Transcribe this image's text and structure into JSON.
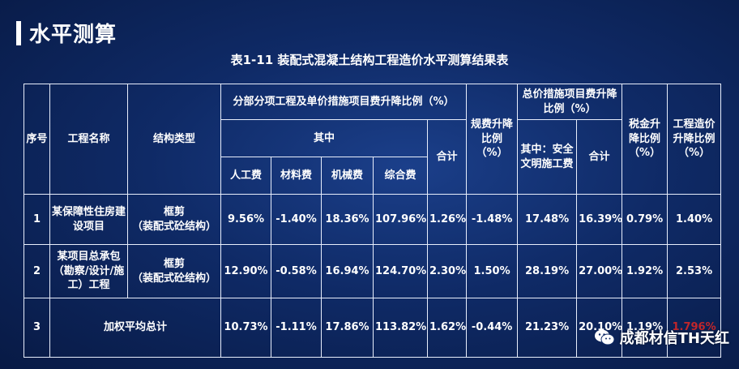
{
  "slide_title": "水平测算",
  "table_title": "表1-11 装配式混凝土结构工程造价水平测算结果表",
  "headers": {
    "seq": "序号",
    "name": "工程名称",
    "structure": "结构类型",
    "sub_group": "分部分项工程及单价措施项目费升降比例（%）",
    "among": "其中",
    "labor": "人工费",
    "material": "材料费",
    "machinery": "机械费",
    "comprehensive": "综合费",
    "subtotal": "合计",
    "fee": "规费升降比例（%）",
    "measure_group": "总价措施项目费升降比例（%）",
    "safety": "其中：安全文明施工费",
    "measure_total": "合计",
    "tax": "税金升降比例（%）",
    "cost": "工程造价升降比例（%）"
  },
  "rows": [
    {
      "seq": "1",
      "name": "某保障性住房建设项目",
      "structure_line1": "框剪",
      "structure_line2": "（装配式砼结构）",
      "labor": "9.56%",
      "material": "-1.40%",
      "machinery": "18.36%",
      "comprehensive": "107.96%",
      "subtotal": "1.26%",
      "fee": "-1.48%",
      "safety": "17.48%",
      "measure_total": "16.39%",
      "tax": "0.79%",
      "cost": "1.40%"
    },
    {
      "seq": "2",
      "name": "某项目总承包（勘察/设计/施工）工程",
      "structure_line1": "框剪",
      "structure_line2": "（装配式砼结构）",
      "labor": "12.90%",
      "material": "-0.58%",
      "machinery": "16.94%",
      "comprehensive": "124.70%",
      "subtotal": "2.30%",
      "fee": "1.50%",
      "safety": "28.19%",
      "measure_total": "27.00%",
      "tax": "1.92%",
      "cost": "2.53%"
    },
    {
      "seq": "3",
      "name": "加权平均总计",
      "labor": "10.73%",
      "material": "-1.11%",
      "machinery": "17.86%",
      "comprehensive": "113.82%",
      "subtotal": "1.62%",
      "fee": "-0.44%",
      "safety": "21.23%",
      "measure_total": "20.10%",
      "tax": "1.19%",
      "cost": "1.796%"
    }
  ],
  "highlight_color": "#c0262b",
  "watermark": {
    "icon": "wechat-icon",
    "text": "成都材信TH天红"
  }
}
